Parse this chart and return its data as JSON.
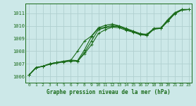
{
  "title": "Graphe pression niveau de la mer (hPa)",
  "bg_color": "#cce8e8",
  "grid_color": "#b0d0d0",
  "line_color": "#1a6b1a",
  "xlim": [
    -0.5,
    23.5
  ],
  "ylim": [
    1005.5,
    1011.8
  ],
  "yticks": [
    1006,
    1007,
    1008,
    1009,
    1010,
    1011
  ],
  "xticks": [
    0,
    1,
    2,
    3,
    4,
    5,
    6,
    7,
    8,
    9,
    10,
    11,
    12,
    13,
    14,
    15,
    16,
    17,
    18,
    19,
    20,
    21,
    22,
    23
  ],
  "series": [
    [
      1006.1,
      1006.7,
      1006.8,
      1007.0,
      1007.1,
      1007.15,
      1007.2,
      1007.2,
      1007.9,
      1008.8,
      1009.7,
      1009.85,
      1009.95,
      1009.95,
      1009.7,
      1009.55,
      1009.35,
      1009.25,
      1009.75,
      1009.8,
      1010.4,
      1011.0,
      1011.25,
      1011.3
    ],
    [
      1006.1,
      1006.7,
      1006.8,
      1007.0,
      1007.1,
      1007.2,
      1007.3,
      1007.25,
      1008.1,
      1009.15,
      1009.8,
      1009.9,
      1010.05,
      1010.0,
      1009.8,
      1009.6,
      1009.4,
      1009.3,
      1009.8,
      1009.8,
      1010.45,
      1011.0,
      1011.3,
      1011.3
    ],
    [
      1006.1,
      1006.7,
      1006.8,
      1007.0,
      1007.1,
      1007.2,
      1007.25,
      1008.0,
      1008.8,
      1009.2,
      1009.85,
      1010.05,
      1010.15,
      1010.0,
      1009.75,
      1009.55,
      1009.35,
      1009.35,
      1009.8,
      1009.85,
      1010.5,
      1011.05,
      1011.3,
      1011.3
    ],
    [
      1006.1,
      1006.65,
      1006.8,
      1006.95,
      1007.05,
      1007.15,
      1007.25,
      1007.2,
      1007.8,
      1008.5,
      1009.4,
      1009.7,
      1009.9,
      1009.85,
      1009.65,
      1009.5,
      1009.3,
      1009.25,
      1009.75,
      1009.8,
      1010.35,
      1010.95,
      1011.25,
      1011.3
    ]
  ]
}
